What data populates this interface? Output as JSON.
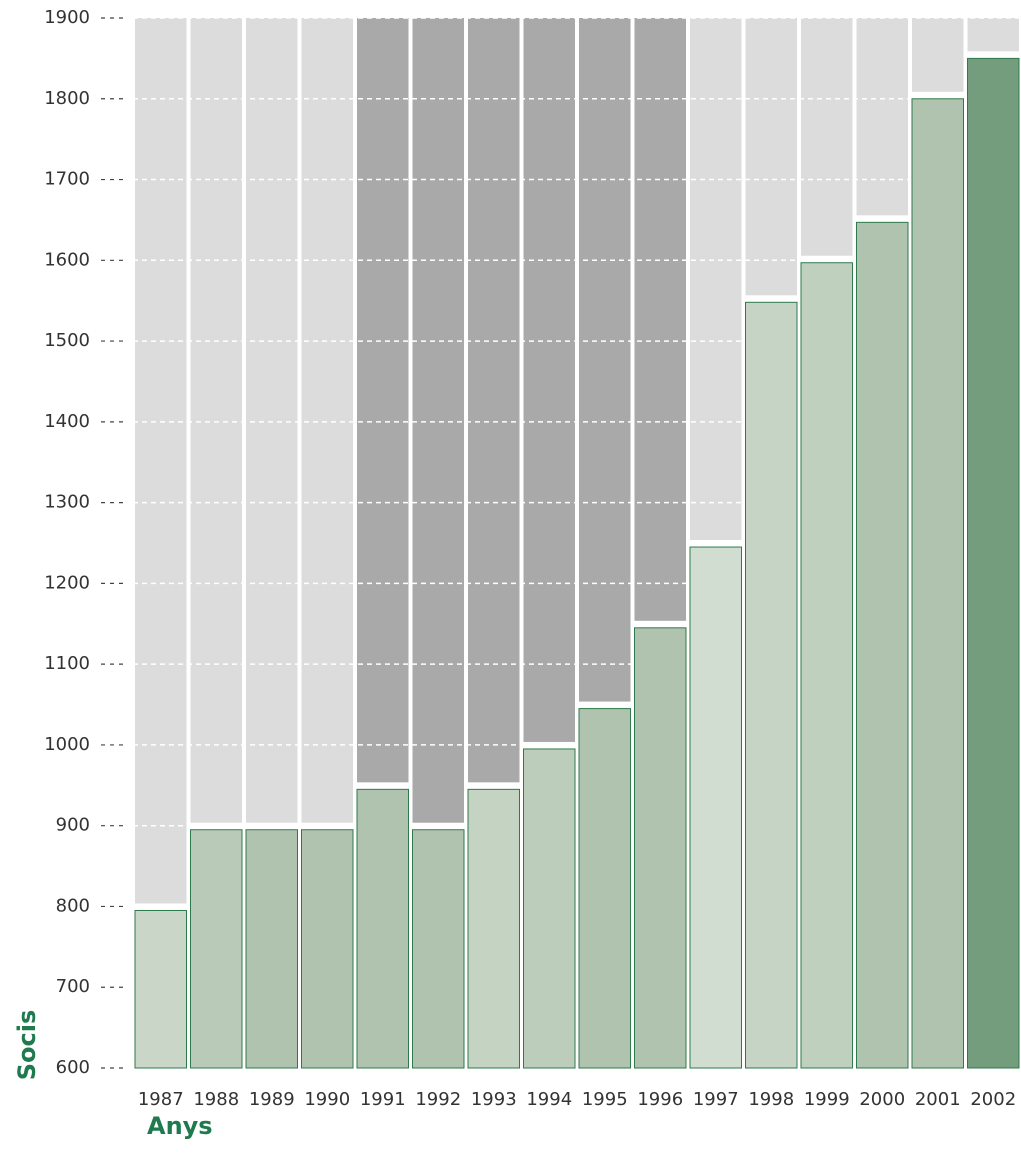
{
  "chart_data": {
    "type": "bar",
    "x_label": "Anys",
    "y_label": "Socis",
    "categories": [
      "1987",
      "1988",
      "1989",
      "1990",
      "1991",
      "1992",
      "1993",
      "1994",
      "1995",
      "1996",
      "1997",
      "1998",
      "1999",
      "2000",
      "2001",
      "2002"
    ],
    "values": [
      795,
      895,
      895,
      895,
      945,
      895,
      945,
      995,
      1045,
      1145,
      1245,
      1548,
      1597,
      1647,
      1800,
      1850
    ],
    "colors": [
      "#c9d6c8",
      "#b9cbb8",
      "#afc3ae",
      "#afc3ae",
      "#afc3ae",
      "#afc3ae",
      "#c4d3c2",
      "#bccdbb",
      "#afc3ae",
      "#afc3ae",
      "#d2ddd1",
      "#c6d4c5",
      "#c0d0bf",
      "#afc3ae",
      "#afc3ae",
      "#739d7c"
    ],
    "ylim": [
      600,
      1900
    ],
    "yticks": [
      600,
      700,
      800,
      900,
      1000,
      1100,
      1200,
      1300,
      1400,
      1500,
      1600,
      1700,
      1800,
      1900
    ],
    "grid": true
  }
}
